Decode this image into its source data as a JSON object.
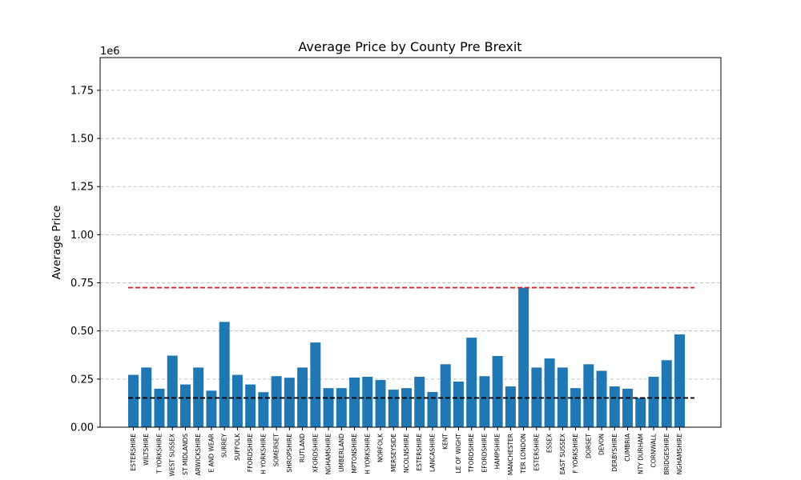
{
  "chart_data": {
    "type": "bar",
    "title": "Average Price by County Pre Brexit",
    "xlabel": "",
    "ylabel": "Average Price",
    "y_offset_label": "1e6",
    "ylim": [
      0,
      1920000
    ],
    "yticks": [
      0,
      250000,
      500000,
      750000,
      1000000,
      1250000,
      1500000,
      1750000
    ],
    "ytick_labels": [
      "0.00",
      "0.25",
      "0.50",
      "0.75",
      "1.00",
      "1.25",
      "1.50",
      "1.75"
    ],
    "grid": "y",
    "bar_color": "#1f77b4",
    "categories": [
      "ESTERSHIRE",
      "WILTSHIRE",
      "T YORKSHIRE",
      "WEST SUSSEX",
      "ST MIDLANDS",
      "ARWICKSHIRE",
      "E AND WEAR",
      "SURREY",
      "SUFFOLK",
      "FFORDSHIRE",
      "H YORKSHIRE",
      "SOMERSET",
      "SHROPSHIRE",
      "RUTLAND",
      "XFORDSHIRE",
      "NGHAMSHIRE",
      "UMBERLAND",
      "MPTONSHIRE",
      "H YORKSHIRE",
      "NORFOLK",
      "MERSEYSIDE",
      "NCOLNSHIRE",
      "ESTERSHIRE",
      "LANCASHIRE",
      "KENT",
      "LE OF WIGHT",
      "TFORDSHIRE",
      "EFORDSHIRE",
      "HAMPSHIRE",
      "MANCHESTER",
      "TER LONDON",
      "ESTERSHIRE",
      "ESSEX",
      "EAST SUSSEX",
      "F YORKSHIRE",
      "DORSET",
      "DEVON",
      "DERBYSHIRE",
      "CUMBRIA",
      "NTY DURHAM",
      "CORNWALL",
      "BRIDGESHIRE",
      "NGHAMSHIRE"
    ],
    "values": [
      272000,
      310000,
      200000,
      372000,
      222000,
      310000,
      190000,
      547000,
      272000,
      222000,
      182000,
      265000,
      257000,
      310000,
      440000,
      203000,
      203000,
      258000,
      262000,
      245000,
      195000,
      203000,
      262000,
      183000,
      327000,
      237000,
      465000,
      265000,
      370000,
      212000,
      725000,
      310000,
      357000,
      310000,
      203000,
      327000,
      293000,
      212000,
      200000,
      152000,
      262000,
      348000,
      482000
    ],
    "reference_lines": [
      {
        "value": 725000,
        "color": "#d62728",
        "style": "dashed"
      },
      {
        "value": 152000,
        "color": "#000000",
        "style": "dashed"
      }
    ]
  }
}
